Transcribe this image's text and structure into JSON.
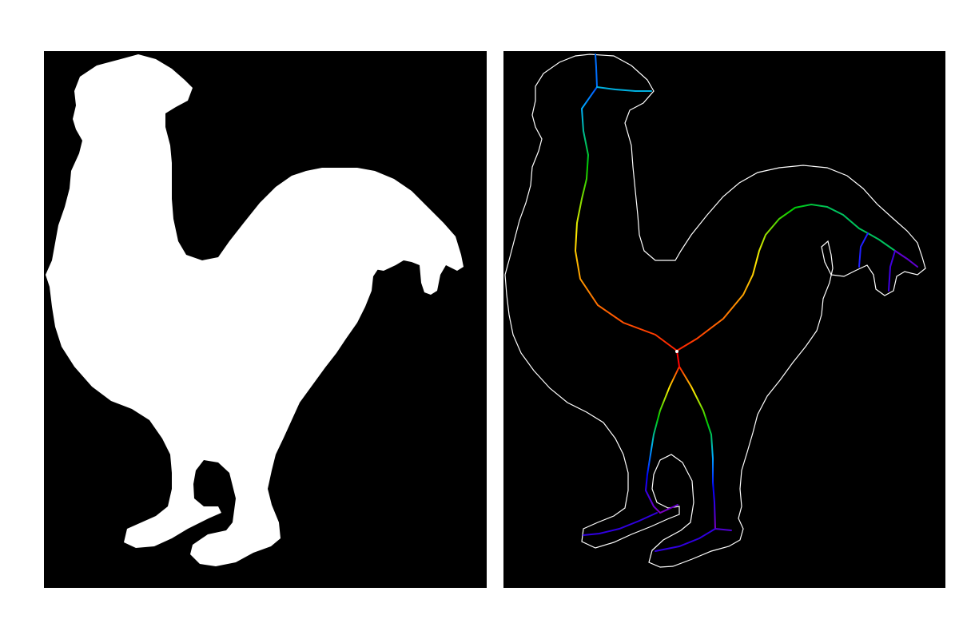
{
  "colors": {
    "background": "#000000",
    "silhouette": "#ffffff",
    "contour": "#ffffff",
    "page": "#ffffff"
  },
  "gradient": {
    "name": "rainbow-distance",
    "stops": [
      "#ff0000",
      "#ff8000",
      "#ffff00",
      "#00c800",
      "#00b4ff",
      "#0000ff",
      "#8000c0"
    ]
  },
  "panels": [
    {
      "name": "binary-silhouette"
    },
    {
      "name": "contour-with-skeleton"
    }
  ]
}
